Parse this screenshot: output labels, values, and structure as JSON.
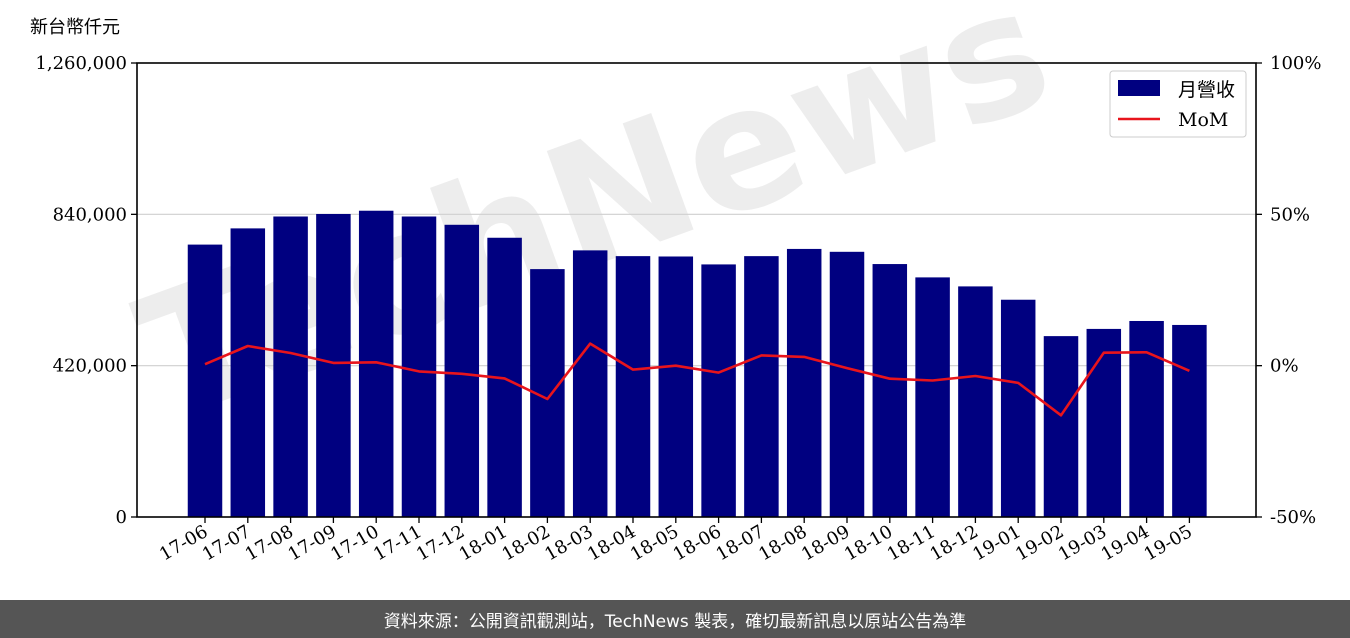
{
  "chart_data": {
    "type": "bar",
    "y_unit_label": "新台幣仟元",
    "categories": [
      "17-06",
      "17-07",
      "17-08",
      "17-09",
      "17-10",
      "17-11",
      "17-12",
      "18-01",
      "18-02",
      "18-03",
      "18-04",
      "18-05",
      "18-06",
      "18-07",
      "18-08",
      "18-09",
      "18-10",
      "18-11",
      "18-12",
      "19-01",
      "19-02",
      "19-03",
      "19-04",
      "19-05"
    ],
    "series": [
      {
        "name": "月營收",
        "type": "bar",
        "axis": "left",
        "color": "#000080",
        "values": [
          756000,
          801000,
          834000,
          841000,
          850000,
          834000,
          811000,
          775000,
          688000,
          740000,
          724000,
          723000,
          701000,
          724000,
          744000,
          736000,
          702000,
          665000,
          640000,
          603000,
          502000,
          522000,
          544000,
          533000
        ]
      },
      {
        "name": "MoM",
        "type": "line",
        "axis": "right",
        "color": "#e8141c",
        "values": [
          0.5,
          6.5,
          4.2,
          0.9,
          1.1,
          -1.9,
          -2.7,
          -4.2,
          -11.0,
          7.3,
          -1.3,
          0.0,
          -2.3,
          3.4,
          2.9,
          -0.8,
          -4.3,
          -4.9,
          -3.4,
          -5.7,
          -16.4,
          4.3,
          4.4,
          -1.7
        ]
      }
    ],
    "y_left": {
      "ylim": [
        0,
        1260000
      ],
      "ticks": [
        "0",
        "420,000",
        "840,000",
        "1,260,000"
      ],
      "tick_values": [
        0,
        420000,
        840000,
        1260000
      ]
    },
    "y_right": {
      "ylim": [
        -50,
        100
      ],
      "ticks": [
        "-50%",
        "0%",
        "50%",
        "100%"
      ],
      "tick_values": [
        -50,
        0,
        50,
        100
      ]
    },
    "grid": "horizontal",
    "legend_position": "top-right"
  },
  "watermark_text": "TechNews",
  "footer": "資料來源：公開資訊觀測站，TechNews 製表，確切最新訊息以原站公告為準"
}
